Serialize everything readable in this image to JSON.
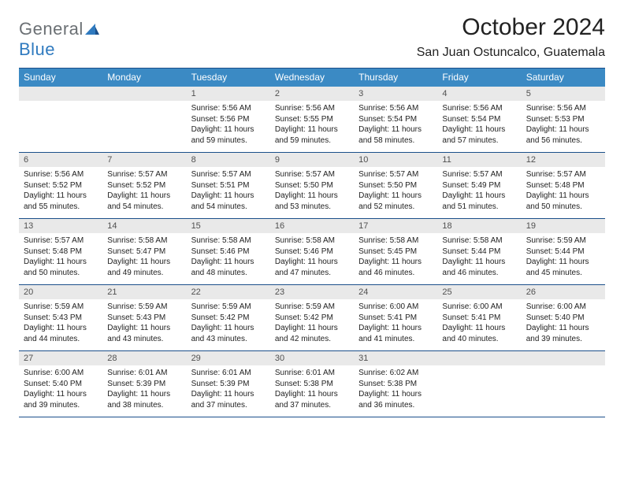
{
  "logo": {
    "part1": "General",
    "part2": "Blue"
  },
  "title": "October 2024",
  "location": "San Juan Ostuncalco, Guatemala",
  "colors": {
    "header_bg": "#3b8ac4",
    "border": "#1b4f8a",
    "daynum_bg": "#e9e9e9",
    "logo_gray": "#6b7074",
    "logo_blue": "#2f7abf"
  },
  "weekdays": [
    "Sunday",
    "Monday",
    "Tuesday",
    "Wednesday",
    "Thursday",
    "Friday",
    "Saturday"
  ],
  "weeks": [
    [
      {
        "num": "",
        "sunrise": "",
        "sunset": "",
        "daylight": ""
      },
      {
        "num": "",
        "sunrise": "",
        "sunset": "",
        "daylight": ""
      },
      {
        "num": "1",
        "sunrise": "Sunrise: 5:56 AM",
        "sunset": "Sunset: 5:56 PM",
        "daylight": "Daylight: 11 hours and 59 minutes."
      },
      {
        "num": "2",
        "sunrise": "Sunrise: 5:56 AM",
        "sunset": "Sunset: 5:55 PM",
        "daylight": "Daylight: 11 hours and 59 minutes."
      },
      {
        "num": "3",
        "sunrise": "Sunrise: 5:56 AM",
        "sunset": "Sunset: 5:54 PM",
        "daylight": "Daylight: 11 hours and 58 minutes."
      },
      {
        "num": "4",
        "sunrise": "Sunrise: 5:56 AM",
        "sunset": "Sunset: 5:54 PM",
        "daylight": "Daylight: 11 hours and 57 minutes."
      },
      {
        "num": "5",
        "sunrise": "Sunrise: 5:56 AM",
        "sunset": "Sunset: 5:53 PM",
        "daylight": "Daylight: 11 hours and 56 minutes."
      }
    ],
    [
      {
        "num": "6",
        "sunrise": "Sunrise: 5:56 AM",
        "sunset": "Sunset: 5:52 PM",
        "daylight": "Daylight: 11 hours and 55 minutes."
      },
      {
        "num": "7",
        "sunrise": "Sunrise: 5:57 AM",
        "sunset": "Sunset: 5:52 PM",
        "daylight": "Daylight: 11 hours and 54 minutes."
      },
      {
        "num": "8",
        "sunrise": "Sunrise: 5:57 AM",
        "sunset": "Sunset: 5:51 PM",
        "daylight": "Daylight: 11 hours and 54 minutes."
      },
      {
        "num": "9",
        "sunrise": "Sunrise: 5:57 AM",
        "sunset": "Sunset: 5:50 PM",
        "daylight": "Daylight: 11 hours and 53 minutes."
      },
      {
        "num": "10",
        "sunrise": "Sunrise: 5:57 AM",
        "sunset": "Sunset: 5:50 PM",
        "daylight": "Daylight: 11 hours and 52 minutes."
      },
      {
        "num": "11",
        "sunrise": "Sunrise: 5:57 AM",
        "sunset": "Sunset: 5:49 PM",
        "daylight": "Daylight: 11 hours and 51 minutes."
      },
      {
        "num": "12",
        "sunrise": "Sunrise: 5:57 AM",
        "sunset": "Sunset: 5:48 PM",
        "daylight": "Daylight: 11 hours and 50 minutes."
      }
    ],
    [
      {
        "num": "13",
        "sunrise": "Sunrise: 5:57 AM",
        "sunset": "Sunset: 5:48 PM",
        "daylight": "Daylight: 11 hours and 50 minutes."
      },
      {
        "num": "14",
        "sunrise": "Sunrise: 5:58 AM",
        "sunset": "Sunset: 5:47 PM",
        "daylight": "Daylight: 11 hours and 49 minutes."
      },
      {
        "num": "15",
        "sunrise": "Sunrise: 5:58 AM",
        "sunset": "Sunset: 5:46 PM",
        "daylight": "Daylight: 11 hours and 48 minutes."
      },
      {
        "num": "16",
        "sunrise": "Sunrise: 5:58 AM",
        "sunset": "Sunset: 5:46 PM",
        "daylight": "Daylight: 11 hours and 47 minutes."
      },
      {
        "num": "17",
        "sunrise": "Sunrise: 5:58 AM",
        "sunset": "Sunset: 5:45 PM",
        "daylight": "Daylight: 11 hours and 46 minutes."
      },
      {
        "num": "18",
        "sunrise": "Sunrise: 5:58 AM",
        "sunset": "Sunset: 5:44 PM",
        "daylight": "Daylight: 11 hours and 46 minutes."
      },
      {
        "num": "19",
        "sunrise": "Sunrise: 5:59 AM",
        "sunset": "Sunset: 5:44 PM",
        "daylight": "Daylight: 11 hours and 45 minutes."
      }
    ],
    [
      {
        "num": "20",
        "sunrise": "Sunrise: 5:59 AM",
        "sunset": "Sunset: 5:43 PM",
        "daylight": "Daylight: 11 hours and 44 minutes."
      },
      {
        "num": "21",
        "sunrise": "Sunrise: 5:59 AM",
        "sunset": "Sunset: 5:43 PM",
        "daylight": "Daylight: 11 hours and 43 minutes."
      },
      {
        "num": "22",
        "sunrise": "Sunrise: 5:59 AM",
        "sunset": "Sunset: 5:42 PM",
        "daylight": "Daylight: 11 hours and 43 minutes."
      },
      {
        "num": "23",
        "sunrise": "Sunrise: 5:59 AM",
        "sunset": "Sunset: 5:42 PM",
        "daylight": "Daylight: 11 hours and 42 minutes."
      },
      {
        "num": "24",
        "sunrise": "Sunrise: 6:00 AM",
        "sunset": "Sunset: 5:41 PM",
        "daylight": "Daylight: 11 hours and 41 minutes."
      },
      {
        "num": "25",
        "sunrise": "Sunrise: 6:00 AM",
        "sunset": "Sunset: 5:41 PM",
        "daylight": "Daylight: 11 hours and 40 minutes."
      },
      {
        "num": "26",
        "sunrise": "Sunrise: 6:00 AM",
        "sunset": "Sunset: 5:40 PM",
        "daylight": "Daylight: 11 hours and 39 minutes."
      }
    ],
    [
      {
        "num": "27",
        "sunrise": "Sunrise: 6:00 AM",
        "sunset": "Sunset: 5:40 PM",
        "daylight": "Daylight: 11 hours and 39 minutes."
      },
      {
        "num": "28",
        "sunrise": "Sunrise: 6:01 AM",
        "sunset": "Sunset: 5:39 PM",
        "daylight": "Daylight: 11 hours and 38 minutes."
      },
      {
        "num": "29",
        "sunrise": "Sunrise: 6:01 AM",
        "sunset": "Sunset: 5:39 PM",
        "daylight": "Daylight: 11 hours and 37 minutes."
      },
      {
        "num": "30",
        "sunrise": "Sunrise: 6:01 AM",
        "sunset": "Sunset: 5:38 PM",
        "daylight": "Daylight: 11 hours and 37 minutes."
      },
      {
        "num": "31",
        "sunrise": "Sunrise: 6:02 AM",
        "sunset": "Sunset: 5:38 PM",
        "daylight": "Daylight: 11 hours and 36 minutes."
      },
      {
        "num": "",
        "sunrise": "",
        "sunset": "",
        "daylight": ""
      },
      {
        "num": "",
        "sunrise": "",
        "sunset": "",
        "daylight": ""
      }
    ]
  ]
}
